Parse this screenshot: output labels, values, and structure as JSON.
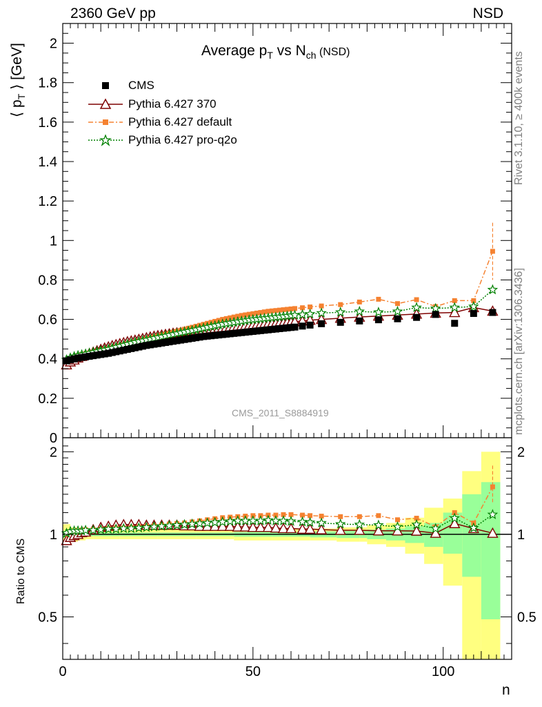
{
  "header": {
    "energy": "2360 GeV pp",
    "process": "NSD"
  },
  "side_tags": {
    "rivet": "Rivet 3.1.10, ≥ 400k events",
    "source": "mcplots.cern.ch [arXiv:1306.3436]"
  },
  "analysis_id": "CMS_2011_S8884919",
  "chart_data": [
    {
      "type": "line",
      "title": "Average p_T vs N_ch (NSD)",
      "title_parts": {
        "lead": "Average p",
        "sub1": "T",
        "mid": " vs N",
        "sub2": "ch",
        "tail": " (NSD)"
      },
      "ylabel": "⟨ p_T ⟩ [GeV]",
      "ylabel_parts": {
        "lead": "⟨ p",
        "sub": "T",
        "tail": " ⟩ [GeV]"
      },
      "xlabel": "",
      "xlim": [
        0,
        118
      ],
      "ylim": [
        0,
        2.1
      ],
      "yticks": [
        "0",
        "0.2",
        "0.4",
        "0.6",
        "0.8",
        "1",
        "1.2",
        "1.4",
        "1.6",
        "1.8",
        "2"
      ],
      "legend_position": "top-left",
      "legend": [
        "CMS",
        "Pythia 6.427 370",
        "Pythia 6.427 default",
        "Pythia 6.427 pro-q2o"
      ],
      "series": [
        {
          "name": "CMS",
          "color": "#000000",
          "marker": "square",
          "x": [
            1,
            2,
            3,
            4,
            5,
            6,
            7,
            8,
            9,
            10,
            11,
            12,
            13,
            14,
            15,
            16,
            17,
            18,
            19,
            20,
            21,
            22,
            23,
            24,
            25,
            26,
            27,
            28,
            29,
            30,
            31,
            32,
            33,
            34,
            35,
            36,
            37,
            38,
            39,
            40,
            41,
            42,
            43,
            44,
            45,
            46,
            47,
            48,
            49,
            50,
            51,
            52,
            53,
            54,
            55,
            56,
            57,
            58,
            59,
            60,
            61,
            63,
            65,
            68,
            73,
            78,
            83,
            88,
            93,
            98,
            103,
            108,
            113
          ],
          "values": [
            0.39,
            0.395,
            0.4,
            0.404,
            0.407,
            0.41,
            0.413,
            0.416,
            0.419,
            0.422,
            0.425,
            0.428,
            0.432,
            0.436,
            0.44,
            0.444,
            0.448,
            0.452,
            0.456,
            0.46,
            0.464,
            0.468,
            0.471,
            0.474,
            0.477,
            0.48,
            0.483,
            0.486,
            0.489,
            0.492,
            0.495,
            0.498,
            0.501,
            0.504,
            0.507,
            0.51,
            0.513,
            0.515,
            0.517,
            0.519,
            0.521,
            0.523,
            0.525,
            0.527,
            0.529,
            0.531,
            0.533,
            0.535,
            0.537,
            0.539,
            0.541,
            0.543,
            0.545,
            0.547,
            0.549,
            0.551,
            0.553,
            0.555,
            0.557,
            0.559,
            0.561,
            0.566,
            0.571,
            0.578,
            0.585,
            0.592,
            0.598,
            0.603,
            0.61,
            0.625,
            0.58,
            0.63,
            0.635
          ]
        },
        {
          "name": "Pythia 6.427 370",
          "color": "#7f0000",
          "marker": "open-triangle",
          "x": [
            1,
            2,
            3,
            4,
            5,
            6,
            7,
            8,
            9,
            10,
            11,
            12,
            13,
            14,
            15,
            16,
            17,
            18,
            19,
            20,
            21,
            22,
            23,
            24,
            25,
            26,
            27,
            28,
            29,
            30,
            31,
            32,
            33,
            34,
            35,
            36,
            37,
            38,
            39,
            40,
            41,
            42,
            43,
            44,
            45,
            46,
            47,
            48,
            49,
            50,
            51,
            52,
            53,
            54,
            55,
            56,
            57,
            58,
            59,
            60,
            61,
            63,
            65,
            68,
            73,
            78,
            83,
            88,
            93,
            98,
            103,
            108,
            113
          ],
          "values": [
            0.37,
            0.385,
            0.395,
            0.405,
            0.413,
            0.42,
            0.427,
            0.434,
            0.441,
            0.448,
            0.455,
            0.461,
            0.467,
            0.472,
            0.477,
            0.482,
            0.487,
            0.491,
            0.495,
            0.499,
            0.503,
            0.507,
            0.511,
            0.515,
            0.518,
            0.521,
            0.524,
            0.527,
            0.53,
            0.532,
            0.534,
            0.537,
            0.54,
            0.542,
            0.544,
            0.547,
            0.549,
            0.551,
            0.553,
            0.555,
            0.557,
            0.559,
            0.561,
            0.563,
            0.565,
            0.566,
            0.567,
            0.569,
            0.57,
            0.572,
            0.574,
            0.575,
            0.577,
            0.578,
            0.579,
            0.58,
            0.582,
            0.583,
            0.585,
            0.586,
            0.588,
            0.592,
            0.596,
            0.6,
            0.606,
            0.612,
            0.617,
            0.622,
            0.627,
            0.632,
            0.635,
            0.66,
            0.642
          ]
        },
        {
          "name": "Pythia 6.427 default",
          "color": "#f58231",
          "marker": "square",
          "x": [
            1,
            2,
            3,
            4,
            5,
            6,
            7,
            8,
            9,
            10,
            11,
            12,
            13,
            14,
            15,
            16,
            17,
            18,
            19,
            20,
            21,
            22,
            23,
            24,
            25,
            26,
            27,
            28,
            29,
            30,
            31,
            32,
            33,
            34,
            35,
            36,
            37,
            38,
            39,
            40,
            41,
            42,
            43,
            44,
            45,
            46,
            47,
            48,
            49,
            50,
            51,
            52,
            53,
            54,
            55,
            56,
            57,
            58,
            59,
            60,
            61,
            63,
            65,
            68,
            73,
            78,
            83,
            88,
            93,
            98,
            103,
            108,
            113
          ],
          "values": [
            0.392,
            0.402,
            0.41,
            0.416,
            0.421,
            0.426,
            0.43,
            0.434,
            0.438,
            0.442,
            0.446,
            0.45,
            0.455,
            0.46,
            0.465,
            0.47,
            0.475,
            0.48,
            0.485,
            0.49,
            0.495,
            0.5,
            0.505,
            0.51,
            0.515,
            0.52,
            0.525,
            0.53,
            0.535,
            0.54,
            0.545,
            0.55,
            0.555,
            0.56,
            0.565,
            0.57,
            0.575,
            0.58,
            0.585,
            0.59,
            0.595,
            0.6,
            0.604,
            0.608,
            0.612,
            0.616,
            0.62,
            0.623,
            0.626,
            0.629,
            0.632,
            0.635,
            0.638,
            0.641,
            0.643,
            0.645,
            0.647,
            0.649,
            0.651,
            0.653,
            0.655,
            0.659,
            0.663,
            0.668,
            0.675,
            0.688,
            0.702,
            0.68,
            0.7,
            0.665,
            0.695,
            0.695,
            0.945
          ]
        },
        {
          "name": "Pythia 6.427 pro-q2o",
          "color": "#008000",
          "marker": "open-star",
          "x": [
            1,
            2,
            3,
            4,
            5,
            6,
            7,
            8,
            9,
            10,
            11,
            12,
            13,
            14,
            15,
            16,
            17,
            18,
            19,
            20,
            21,
            22,
            23,
            24,
            25,
            26,
            27,
            28,
            29,
            30,
            31,
            32,
            33,
            34,
            35,
            36,
            37,
            38,
            39,
            40,
            41,
            42,
            43,
            44,
            45,
            46,
            47,
            48,
            49,
            50,
            51,
            52,
            53,
            54,
            55,
            56,
            57,
            58,
            59,
            60,
            61,
            63,
            65,
            68,
            73,
            78,
            83,
            88,
            93,
            98,
            103,
            108,
            113
          ],
          "values": [
            0.395,
            0.405,
            0.412,
            0.417,
            0.421,
            0.425,
            0.429,
            0.433,
            0.437,
            0.441,
            0.445,
            0.449,
            0.454,
            0.459,
            0.464,
            0.469,
            0.474,
            0.479,
            0.484,
            0.488,
            0.492,
            0.496,
            0.5,
            0.504,
            0.508,
            0.512,
            0.516,
            0.52,
            0.524,
            0.528,
            0.532,
            0.536,
            0.54,
            0.544,
            0.548,
            0.552,
            0.556,
            0.56,
            0.564,
            0.568,
            0.572,
            0.576,
            0.579,
            0.582,
            0.585,
            0.588,
            0.591,
            0.594,
            0.597,
            0.599,
            0.601,
            0.603,
            0.605,
            0.607,
            0.609,
            0.611,
            0.613,
            0.615,
            0.617,
            0.619,
            0.621,
            0.624,
            0.627,
            0.632,
            0.636,
            0.64,
            0.636,
            0.64,
            0.66,
            0.655,
            0.66,
            0.665,
            0.75
          ]
        }
      ]
    },
    {
      "type": "line",
      "ylabel": "Ratio to CMS",
      "xlabel": "n",
      "xlim": [
        0,
        118
      ],
      "ylim": [
        0.35,
        2.25
      ],
      "yscale": "log",
      "yticks": [
        "0.5",
        "1",
        "2"
      ],
      "xticks": [
        "0",
        "50",
        "100"
      ],
      "reference_line": 1,
      "uncertainty_bands": {
        "inner_color": "#99ff99",
        "outer_color": "#ffff80",
        "x_edges": [
          0,
          2,
          4,
          6,
          8,
          15,
          25,
          35,
          45,
          55,
          65,
          72,
          78,
          80,
          85,
          90,
          95,
          100,
          105,
          110,
          115
        ],
        "inner_low": [
          0.97,
          0.975,
          0.98,
          0.985,
          0.985,
          0.985,
          0.985,
          0.985,
          0.98,
          0.98,
          0.975,
          0.97,
          0.97,
          0.96,
          0.95,
          0.93,
          0.9,
          0.85,
          0.7,
          0.49
        ],
        "inner_high": [
          1.03,
          1.025,
          1.02,
          1.015,
          1.015,
          1.015,
          1.015,
          1.015,
          1.02,
          1.02,
          1.025,
          1.03,
          1.03,
          1.04,
          1.05,
          1.07,
          1.1,
          1.2,
          1.4,
          1.55
        ],
        "outer_low": [
          0.92,
          0.94,
          0.95,
          0.96,
          0.96,
          0.96,
          0.96,
          0.96,
          0.95,
          0.95,
          0.95,
          0.94,
          0.94,
          0.92,
          0.9,
          0.85,
          0.78,
          0.65,
          0.35,
          0.35
        ],
        "outer_high": [
          1.09,
          1.06,
          1.05,
          1.04,
          1.04,
          1.04,
          1.04,
          1.04,
          1.05,
          1.05,
          1.05,
          1.06,
          1.06,
          1.08,
          1.1,
          1.15,
          1.25,
          1.35,
          1.7,
          2.0
        ]
      },
      "series": [
        {
          "name": "Pythia 6.427 370",
          "color": "#7f0000",
          "x": [
            1,
            2,
            3,
            4,
            5,
            6,
            8,
            10,
            12,
            14,
            16,
            18,
            20,
            22,
            24,
            26,
            28,
            30,
            32,
            34,
            36,
            38,
            40,
            42,
            44,
            46,
            48,
            50,
            52,
            54,
            56,
            58,
            60,
            63,
            65,
            68,
            73,
            78,
            83,
            88,
            93,
            98,
            103,
            108,
            113
          ],
          "values": [
            0.95,
            0.975,
            0.99,
            1.0,
            1.015,
            1.02,
            1.04,
            1.06,
            1.07,
            1.08,
            1.085,
            1.085,
            1.085,
            1.08,
            1.08,
            1.08,
            1.08,
            1.08,
            1.075,
            1.075,
            1.07,
            1.07,
            1.07,
            1.07,
            1.07,
            1.065,
            1.065,
            1.06,
            1.06,
            1.06,
            1.055,
            1.05,
            1.05,
            1.045,
            1.045,
            1.04,
            1.035,
            1.035,
            1.03,
            1.03,
            1.028,
            1.01,
            1.095,
            1.05,
            1.01
          ]
        },
        {
          "name": "Pythia 6.427 default",
          "color": "#f58231",
          "x": [
            1,
            2,
            3,
            4,
            5,
            6,
            8,
            10,
            12,
            14,
            16,
            18,
            20,
            22,
            24,
            26,
            28,
            30,
            32,
            34,
            36,
            38,
            40,
            42,
            44,
            46,
            48,
            50,
            52,
            54,
            56,
            58,
            60,
            63,
            65,
            68,
            73,
            78,
            83,
            88,
            93,
            98,
            103,
            108,
            113
          ],
          "values": [
            1.0,
            1.015,
            1.025,
            1.03,
            1.035,
            1.04,
            1.04,
            1.045,
            1.05,
            1.055,
            1.055,
            1.06,
            1.065,
            1.07,
            1.075,
            1.08,
            1.09,
            1.095,
            1.1,
            1.11,
            1.12,
            1.13,
            1.14,
            1.15,
            1.155,
            1.16,
            1.165,
            1.17,
            1.17,
            1.175,
            1.175,
            1.18,
            1.18,
            1.175,
            1.17,
            1.165,
            1.16,
            1.16,
            1.17,
            1.13,
            1.145,
            1.065,
            1.2,
            1.1,
            1.49
          ]
        },
        {
          "name": "Pythia 6.427 pro-q2o",
          "color": "#008000",
          "x": [
            1,
            2,
            3,
            4,
            5,
            6,
            8,
            10,
            12,
            14,
            16,
            18,
            20,
            22,
            24,
            26,
            28,
            30,
            32,
            34,
            36,
            38,
            40,
            42,
            44,
            46,
            48,
            50,
            52,
            54,
            56,
            58,
            60,
            63,
            65,
            68,
            73,
            78,
            83,
            88,
            93,
            98,
            103,
            108,
            113
          ],
          "values": [
            1.01,
            1.025,
            1.03,
            1.03,
            1.03,
            1.035,
            1.035,
            1.04,
            1.045,
            1.045,
            1.05,
            1.05,
            1.055,
            1.06,
            1.065,
            1.07,
            1.075,
            1.08,
            1.085,
            1.09,
            1.095,
            1.1,
            1.105,
            1.11,
            1.115,
            1.12,
            1.12,
            1.12,
            1.12,
            1.125,
            1.12,
            1.12,
            1.115,
            1.11,
            1.105,
            1.1,
            1.09,
            1.085,
            1.08,
            1.065,
            1.085,
            1.05,
            1.145,
            1.055,
            1.18
          ]
        }
      ]
    }
  ]
}
